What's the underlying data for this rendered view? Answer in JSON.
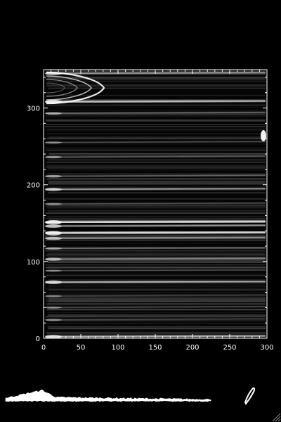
{
  "chart_data": {
    "type": "heatmap",
    "title": "",
    "xlabel": "",
    "ylabel": "",
    "xlim": [
      0,
      300
    ],
    "ylim": [
      0,
      350
    ],
    "x_ticks": [
      0,
      50,
      100,
      150,
      200,
      250,
      300
    ],
    "y_ticks": [
      0,
      100,
      200,
      300
    ],
    "colormap": "grayscale",
    "streaks": [
      {
        "y": 345,
        "x_end": 300,
        "intensity": 0.55
      },
      {
        "y": 308,
        "x_end": 300,
        "intensity": 0.75
      },
      {
        "y": 293,
        "x_end": 300,
        "intensity": 0.35
      },
      {
        "y": 255,
        "x_end": 300,
        "intensity": 0.25
      },
      {
        "y": 236,
        "x_end": 300,
        "intensity": 0.3
      },
      {
        "y": 211,
        "x_end": 300,
        "intensity": 0.35
      },
      {
        "y": 194,
        "x_end": 300,
        "intensity": 0.55
      },
      {
        "y": 175,
        "x_end": 300,
        "intensity": 0.25
      },
      {
        "y": 151,
        "x_end": 300,
        "intensity": 0.85
      },
      {
        "y": 146,
        "x_end": 300,
        "intensity": 0.55
      },
      {
        "y": 137,
        "x_end": 300,
        "intensity": 0.85
      },
      {
        "y": 130,
        "x_end": 300,
        "intensity": 0.5
      },
      {
        "y": 117,
        "x_end": 300,
        "intensity": 0.3
      },
      {
        "y": 103,
        "x_end": 300,
        "intensity": 0.45
      },
      {
        "y": 88,
        "x_end": 300,
        "intensity": 0.2
      },
      {
        "y": 73,
        "x_end": 300,
        "intensity": 0.65
      },
      {
        "y": 55,
        "x_end": 300,
        "intensity": 0.2
      },
      {
        "y": 40,
        "x_end": 300,
        "intensity": 0.25
      },
      {
        "y": 24,
        "x_end": 300,
        "intensity": 0.25
      },
      {
        "y": 2,
        "x_end": 300,
        "intensity": 0.7
      }
    ],
    "grid": false,
    "legend": "none"
  },
  "profile_plot": {
    "color": "#ffffff",
    "shape": "intensity-profile"
  },
  "window": {
    "resize_grip_icon": "resize-grip-icon"
  }
}
